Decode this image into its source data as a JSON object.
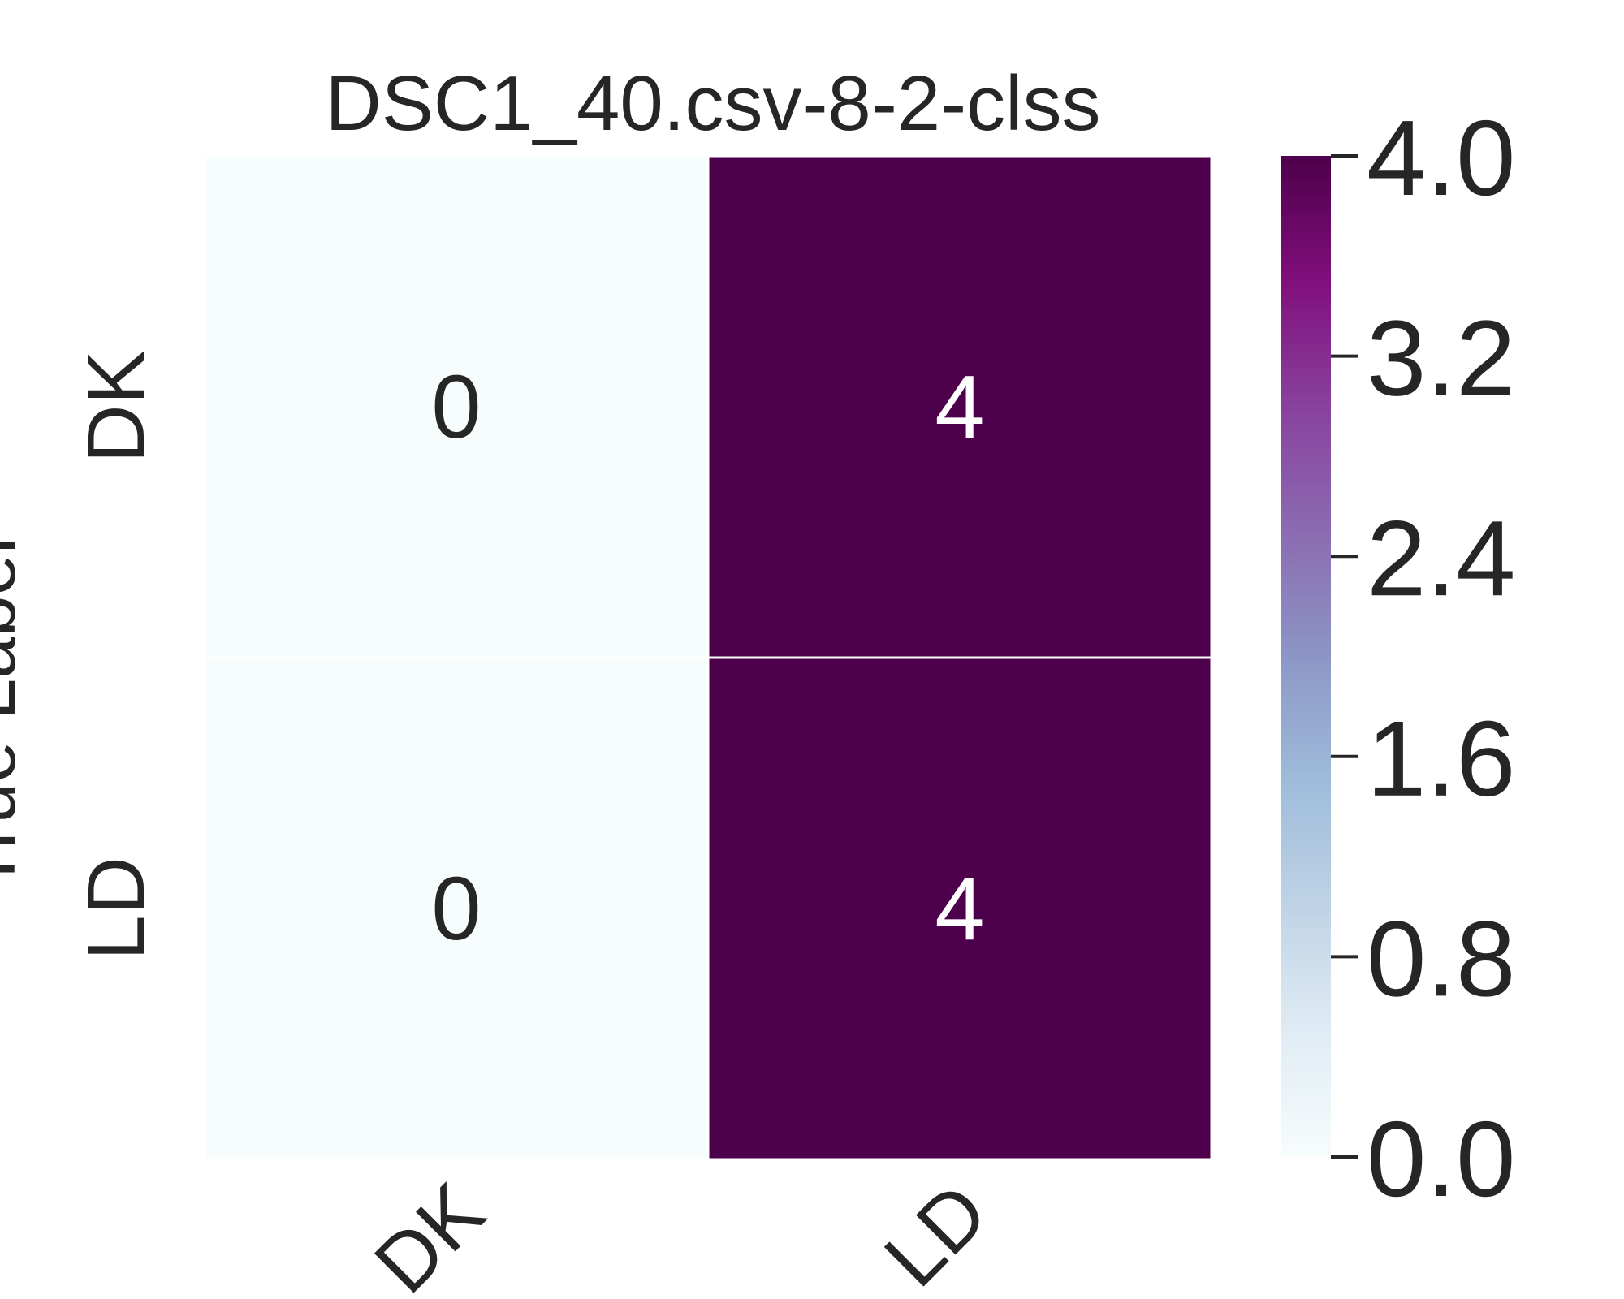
{
  "chart_data": {
    "type": "heatmap",
    "title": "DSC1_40.csv-8-2-clss",
    "ylabel": "True Label",
    "xlabel": "",
    "rows": [
      "DK",
      "LD"
    ],
    "cols": [
      "DK",
      "LD"
    ],
    "values": [
      [
        0,
        4
      ],
      [
        0,
        4
      ]
    ],
    "colorbar": {
      "min": 0,
      "max": 4,
      "ticks": [
        "0.0",
        "0.8",
        "1.6",
        "2.4",
        "3.2",
        "4.0"
      ],
      "colormap": "BuPu",
      "low_color": "#f7fcfd",
      "high_color": "#4d004b"
    },
    "cell_text_dark": "#262626",
    "cell_text_light": "#ffffff"
  }
}
